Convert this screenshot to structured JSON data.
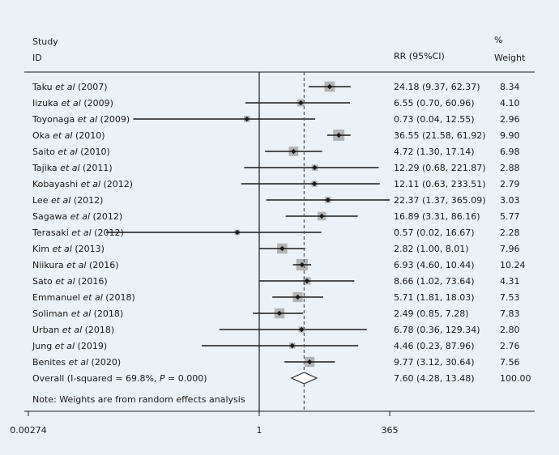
{
  "chart_data": {
    "type": "forest",
    "headers": {
      "study_line1": "Study",
      "study_line2": "ID",
      "effect": "RR (95%CI)",
      "weight_line1": "%",
      "weight_line2": "Weight"
    },
    "x_scale": "log",
    "x_ticks": [
      {
        "value": 0.00274,
        "label": "0.00274"
      },
      {
        "value": 1,
        "label": "1"
      },
      {
        "value": 365,
        "label": "365"
      }
    ],
    "xlim": [
      0.00274,
      365
    ],
    "null_line": 1,
    "studies": [
      {
        "author": "Taku ",
        "etal": "et al",
        "year": " (2007)",
        "rr": 24.18,
        "lo": 9.37,
        "hi": 62.37,
        "ci_text": "24.18 (9.37, 62.37)",
        "weight": 8.34,
        "weight_text": "8.34"
      },
      {
        "author": "Iizuka ",
        "etal": "et al",
        "year": " (2009)",
        "rr": 6.55,
        "lo": 0.7,
        "hi": 60.96,
        "ci_text": "6.55 (0.70, 60.96)",
        "weight": 4.1,
        "weight_text": "4.10"
      },
      {
        "author": "Toyonaga ",
        "etal": "et al",
        "year": " (2009)",
        "rr": 0.73,
        "lo": 0.04,
        "hi": 12.55,
        "ci_text": "0.73 (0.04, 12.55)",
        "weight": 2.96,
        "weight_text": "2.96"
      },
      {
        "author": "Oka ",
        "etal": "et al",
        "year": " (2010)",
        "rr": 36.55,
        "lo": 21.58,
        "hi": 61.92,
        "ci_text": "36.55 (21.58, 61.92)",
        "weight": 9.9,
        "weight_text": "9.90"
      },
      {
        "author": "Saito ",
        "etal": "et al",
        "year": " (2010)",
        "rr": 4.72,
        "lo": 1.3,
        "hi": 17.14,
        "ci_text": "4.72 (1.30, 17.14)",
        "weight": 6.98,
        "weight_text": "6.98"
      },
      {
        "author": "Tajika ",
        "etal": "et al",
        "year": " (2011)",
        "rr": 12.29,
        "lo": 0.68,
        "hi": 221.87,
        "ci_text": "12.29 (0.68, 221.87)",
        "weight": 2.88,
        "weight_text": "2.88"
      },
      {
        "author": "Kobayashi ",
        "etal": "et al",
        "year": " (2012)",
        "rr": 12.11,
        "lo": 0.63,
        "hi": 233.51,
        "ci_text": "12.11 (0.63, 233.51)",
        "weight": 2.79,
        "weight_text": "2.79"
      },
      {
        "author": "Lee ",
        "etal": "et al",
        "year": " (2012)",
        "rr": 22.37,
        "lo": 1.37,
        "hi": 365.09,
        "ci_text": "22.37 (1.37, 365.09)",
        "weight": 3.03,
        "weight_text": "3.03"
      },
      {
        "author": "Sagawa ",
        "etal": "et al",
        "year": " (2012)",
        "rr": 16.89,
        "lo": 3.31,
        "hi": 86.16,
        "ci_text": "16.89 (3.31, 86.16)",
        "weight": 5.77,
        "weight_text": "5.77"
      },
      {
        "author": "Terasaki ",
        "etal": "et al",
        "year": " (2012)",
        "rr": 0.57,
        "lo": 0.02,
        "hi": 16.67,
        "ci_text": "0.57 (0.02, 16.67)",
        "weight": 2.28,
        "weight_text": "2.28"
      },
      {
        "author": "Kim ",
        "etal": "et al",
        "year": " (2013)",
        "rr": 2.82,
        "lo": 1.0,
        "hi": 8.01,
        "ci_text": "2.82 (1.00, 8.01)",
        "weight": 7.96,
        "weight_text": "7.96"
      },
      {
        "author": "Niikura ",
        "etal": "et al",
        "year": " (2016)",
        "rr": 6.93,
        "lo": 4.6,
        "hi": 10.44,
        "ci_text": "6.93 (4.60, 10.44)",
        "weight": 10.24,
        "weight_text": "10.24"
      },
      {
        "author": "Sato ",
        "etal": "et al",
        "year": " (2016)",
        "rr": 8.66,
        "lo": 1.02,
        "hi": 73.64,
        "ci_text": "8.66 (1.02, 73.64)",
        "weight": 4.31,
        "weight_text": "4.31"
      },
      {
        "author": "Emmanuel ",
        "etal": "et al",
        "year": " (2018)",
        "rr": 5.71,
        "lo": 1.81,
        "hi": 18.03,
        "ci_text": "5.71 (1.81, 18.03)",
        "weight": 7.53,
        "weight_text": "7.53"
      },
      {
        "author": "Soliman ",
        "etal": "et al",
        "year": " (2018)",
        "rr": 2.49,
        "lo": 0.85,
        "hi": 7.28,
        "ci_text": "2.49 (0.85, 7.28)",
        "weight": 7.83,
        "weight_text": "7.83"
      },
      {
        "author": "Urban ",
        "etal": "et al",
        "year": " (2018)",
        "rr": 6.78,
        "lo": 0.36,
        "hi": 129.34,
        "ci_text": "6.78 (0.36, 129.34)",
        "weight": 2.8,
        "weight_text": "2.80"
      },
      {
        "author": "Jung ",
        "etal": "et al",
        "year": " (2019)",
        "rr": 4.46,
        "lo": 0.23,
        "hi": 87.96,
        "ci_text": "4.46 (0.23, 87.96)",
        "weight": 2.76,
        "weight_text": "2.76"
      },
      {
        "author": "Benites ",
        "etal": "et al",
        "year": " (2020)",
        "rr": 9.77,
        "lo": 3.12,
        "hi": 30.64,
        "ci_text": "9.77 (3.12, 30.64)",
        "weight": 7.56,
        "weight_text": "7.56"
      }
    ],
    "overall": {
      "label_prefix": "Overall (I-squared = 69.8%, ",
      "p_symbol": "P",
      "label_suffix": " = 0.000)",
      "rr": 7.6,
      "lo": 4.28,
      "hi": 13.48,
      "ci_text": "7.60 (4.28, 13.48)",
      "weight_text": "100.00"
    },
    "note": "Note: Weights are from random effects analysis",
    "colors": {
      "background": "#eaf1f7",
      "square": "#b3b3b3",
      "line": "#1a1a1a",
      "overall_line": "#555555"
    }
  }
}
